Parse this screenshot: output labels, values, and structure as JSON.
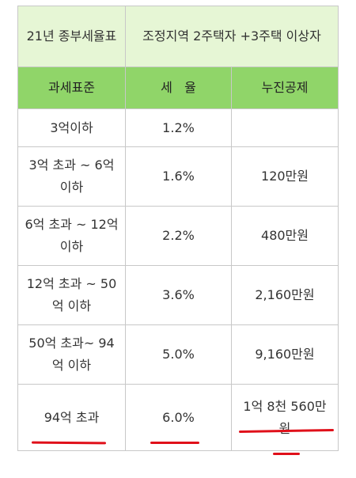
{
  "title_row": {
    "left": "21년 종부세율표",
    "right": "조정지역 2주택자 +3주택 이상자"
  },
  "header": {
    "col1": "과세표준",
    "col2": "세   율",
    "col3": "누진공제"
  },
  "rows": [
    {
      "base": "3억이하",
      "rate": "1.2%",
      "deduction": ""
    },
    {
      "base": "3억 초과 ~ 6억 이하",
      "rate": "1.6%",
      "deduction": "120만원"
    },
    {
      "base": "6억 초과 ~ 12억 이하",
      "rate": "2.2%",
      "deduction": "480만원"
    },
    {
      "base": "12억 초과 ~ 50억 이하",
      "rate": "3.6%",
      "deduction": "2,160만원"
    },
    {
      "base": "50억 초과~ 94억 이하",
      "rate": "5.0%",
      "deduction": "9,160만원"
    },
    {
      "base": "94억 초과",
      "rate": "6.0%",
      "deduction": "1억 8천 560만원"
    }
  ],
  "colors": {
    "title_bg": "#e6f6d5",
    "header_bg": "#90d569",
    "underline": "#e0101a",
    "border": "#c8c8c8"
  }
}
